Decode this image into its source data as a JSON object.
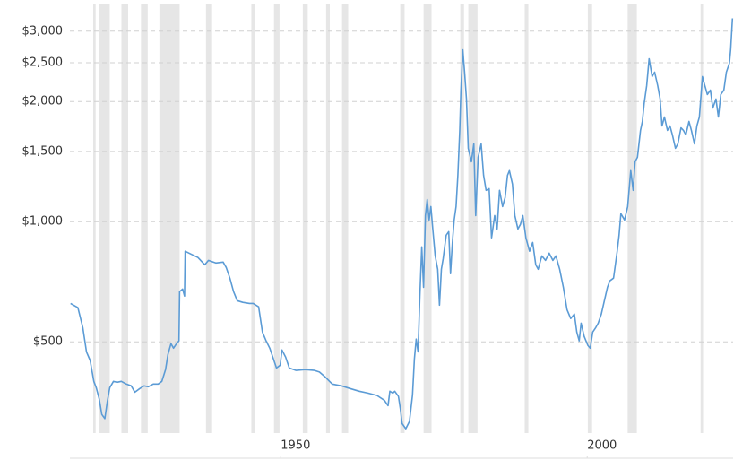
{
  "chart_data": {
    "type": "line",
    "color": "#5b9bd5",
    "log_y": true,
    "grid": true,
    "ylim": [
      300,
      3500
    ],
    "yticks": [
      {
        "value": 500,
        "label": "$500"
      },
      {
        "value": 1000,
        "label": "$1,000"
      },
      {
        "value": 1500,
        "label": "$1,500"
      },
      {
        "value": 2000,
        "label": "$2,000"
      },
      {
        "value": 2500,
        "label": "$2,500"
      },
      {
        "value": 3000,
        "label": "$3,000"
      }
    ],
    "xlim": [
      1915.6,
      2023.8
    ],
    "xticks": [
      1950,
      2000
    ],
    "recessions": [
      [
        1919.4,
        1919.8
      ],
      [
        1920.4,
        1922.1
      ],
      [
        1924.0,
        1925.1
      ],
      [
        1927.2,
        1928.3
      ],
      [
        1930.2,
        1933.5
      ],
      [
        1937.8,
        1938.8
      ],
      [
        1945.2,
        1945.8
      ],
      [
        1948.9,
        1949.8
      ],
      [
        1953.6,
        1954.4
      ],
      [
        1957.4,
        1958.0
      ],
      [
        1960.0,
        1961.0
      ],
      [
        1969.5,
        1970.2
      ],
      [
        1973.3,
        1974.6
      ],
      [
        1979.3,
        1979.9
      ],
      [
        1980.6,
        1982.1
      ],
      [
        1989.8,
        1990.4
      ],
      [
        2000.1,
        2000.8
      ],
      [
        2006.6,
        2008.1
      ],
      [
        2018.5,
        2018.9
      ]
    ],
    "x": [
      1915.7,
      1916.9,
      1917.7,
      1918.3,
      1918.9,
      1919.5,
      1919.9,
      1920.4,
      1920.8,
      1921.3,
      1921.7,
      1922.1,
      1922.7,
      1923.3,
      1924.0,
      1924.8,
      1925.6,
      1926.2,
      1927.0,
      1927.7,
      1928.4,
      1929.2,
      1930.0,
      1930.6,
      1931.2,
      1931.6,
      1932.1,
      1932.5,
      1933.0,
      1933.4,
      1933.5,
      1934.0,
      1934.3,
      1934.4,
      1935.3,
      1936.5,
      1937.6,
      1938.2,
      1939.4,
      1940.6,
      1941.1,
      1941.7,
      1942.3,
      1942.9,
      1943.8,
      1944.9,
      1945.5,
      1946.4,
      1947.0,
      1947.6,
      1948.2,
      1948.7,
      1949.3,
      1949.9,
      1950.2,
      1950.8,
      1951.4,
      1952.5,
      1954.0,
      1955.5,
      1956.3,
      1957.2,
      1958.4,
      1959.9,
      1961.3,
      1962.8,
      1964.2,
      1965.7,
      1966.9,
      1967.5,
      1967.8,
      1968.3,
      1968.6,
      1969.2,
      1969.5,
      1969.8,
      1970.4,
      1971.0,
      1971.5,
      1971.8,
      1972.1,
      1972.4,
      1972.7,
      1973.0,
      1973.3,
      1973.6,
      1973.9,
      1974.2,
      1974.5,
      1974.8,
      1975.2,
      1975.6,
      1975.9,
      1976.2,
      1976.5,
      1977.0,
      1977.4,
      1977.7,
      1978.0,
      1978.3,
      1978.6,
      1978.9,
      1979.2,
      1979.4,
      1979.7,
      1980.0,
      1980.3,
      1980.6,
      1981.1,
      1981.5,
      1981.8,
      1982.2,
      1982.7,
      1983.1,
      1983.5,
      1984.0,
      1984.4,
      1984.9,
      1985.3,
      1985.7,
      1986.2,
      1986.6,
      1987.0,
      1987.3,
      1987.8,
      1988.2,
      1988.7,
      1989.1,
      1989.5,
      1990.0,
      1990.6,
      1991.1,
      1991.6,
      1992.0,
      1992.6,
      1993.2,
      1993.8,
      1994.4,
      1994.9,
      1995.5,
      1996.1,
      1996.7,
      1997.3,
      1997.9,
      1998.3,
      1998.7,
      1999.0,
      1999.5,
      2000.1,
      2000.5,
      2000.9,
      2001.4,
      2001.8,
      2002.3,
      2002.8,
      2003.3,
      2003.7,
      2004.3,
      2004.9,
      2005.2,
      2005.5,
      2006.1,
      2006.6,
      2007.1,
      2007.5,
      2007.8,
      2008.2,
      2008.7,
      2009.0,
      2009.3,
      2009.7,
      2010.1,
      2010.6,
      2011.0,
      2011.5,
      2011.9,
      2012.2,
      2012.6,
      2013.1,
      2013.5,
      2013.9,
      2014.4,
      2014.8,
      2015.3,
      2015.7,
      2016.1,
      2016.6,
      2017.0,
      2017.5,
      2017.9,
      2018.3,
      2018.8,
      2019.2,
      2019.6,
      2020.1,
      2020.5,
      2021.0,
      2021.4,
      2021.8,
      2022.3,
      2022.7,
      2023.2,
      2023.4,
      2023.7
    ],
    "values": [
      624,
      609,
      543,
      472,
      449,
      398,
      384,
      359,
      329,
      321,
      354,
      384,
      398,
      396,
      398,
      392,
      388,
      374,
      382,
      388,
      386,
      392,
      392,
      398,
      426,
      465,
      495,
      482,
      495,
      503,
      668,
      678,
      651,
      843,
      830,
      813,
      780,
      800,
      788,
      792,
      768,
      722,
      668,
      634,
      628,
      624,
      624,
      612,
      529,
      503,
      482,
      458,
      430,
      437,
      477,
      458,
      430,
      424,
      426,
      424,
      420,
      409,
      392,
      388,
      382,
      376,
      372,
      367,
      357,
      346,
      376,
      372,
      376,
      365,
      341,
      312,
      303,
      316,
      368,
      453,
      508,
      472,
      651,
      865,
      685,
      1036,
      1137,
      1010,
      1091,
      959,
      821,
      760,
      618,
      760,
      808,
      925,
      944,
      741,
      887,
      1010,
      1091,
      1307,
      1693,
      2136,
      2696,
      2369,
      2029,
      1527,
      1413,
      1567,
      1036,
      1450,
      1567,
      1307,
      1198,
      1210,
      911,
      1036,
      959,
      1198,
      1091,
      1149,
      1307,
      1342,
      1242,
      1036,
      959,
      984,
      1036,
      911,
      843,
      887,
      780,
      760,
      821,
      800,
      834,
      800,
      821,
      760,
      685,
      602,
      572,
      587,
      529,
      503,
      557,
      516,
      490,
      482,
      529,
      543,
      557,
      587,
      634,
      685,
      711,
      722,
      843,
      925,
      1047,
      1010,
      1091,
      1342,
      1198,
      1413,
      1450,
      1693,
      1783,
      1977,
      2192,
      2560,
      2309,
      2369,
      2192,
      2029,
      1737,
      1829,
      1693,
      1737,
      1650,
      1527,
      1567,
      1719,
      1693,
      1650,
      1783,
      1693,
      1567,
      1737,
      1829,
      2309,
      2192,
      2082,
      2136,
      1926,
      2029,
      1829,
      2082,
      2136,
      2369,
      2494,
      2696,
      3230
    ]
  }
}
